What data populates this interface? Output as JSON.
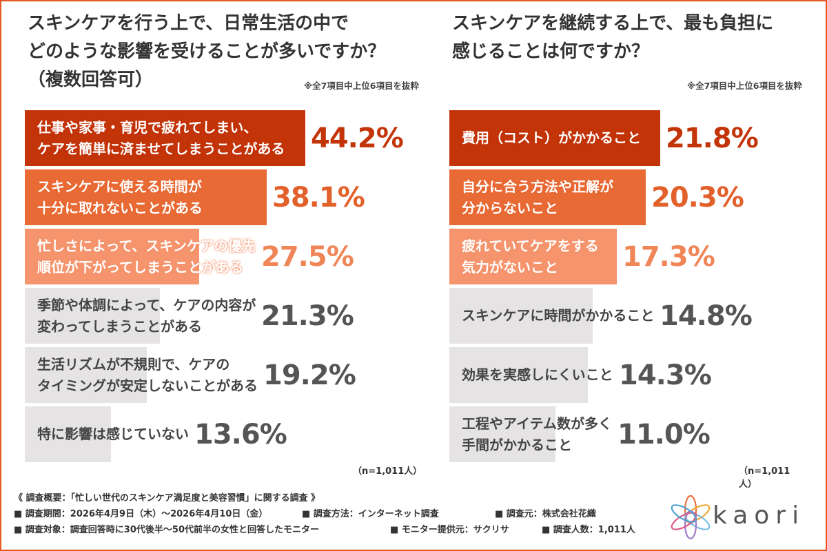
{
  "colors": {
    "border": "#e4571f",
    "bar1": "#c33409",
    "bar2": "#e86a35",
    "bar3": "#f5946d",
    "gray": "#e5e3e3",
    "pct1": "#c33409",
    "pct2": "#e2602a",
    "pct3": "#f08558",
    "pct_gray": "#555555"
  },
  "left": {
    "title": "スキンケアを行う上で、日常生活の中で\nどのような影響を受けることが多いですか？\n（複数回答可）",
    "note": "※全7項目中上位6項目を抜粋",
    "n_label": "（n=1,011人）"
  },
  "right": {
    "title": "スキンケアを継続する上で、最も負担に\n感じることは何ですか？",
    "note": "※全7項目中上位6項目を抜粋",
    "n_label": "（n=1,011人）"
  },
  "chart_data": [
    {
      "type": "bar",
      "orientation": "horizontal",
      "title": "スキンケアを行う上で、日常生活の中でどのような影響を受けることが多いですか？（複数回答可）",
      "categories": [
        "仕事や家事・育児で疲れてしまい、\nケアを簡単に済ませてしまうことがある",
        "スキンケアに使える時間が\n十分に取れないことがある",
        "忙しさによって、スキンケアの優先\n順位が下がってしまうことがある",
        "季節や体調によって、ケアの内容が\n変わってしまうことがある",
        "生活リズムが不規則で、ケアの\nタイミングが安定しないことがある",
        "特に影響は感じていない"
      ],
      "values": [
        44.2,
        38.1,
        27.5,
        21.3,
        19.2,
        13.6
      ],
      "value_labels": [
        "44.2%",
        "38.1%",
        "27.5%",
        "21.3%",
        "19.2%",
        "13.6%"
      ],
      "unit": "%",
      "xlim": [
        0,
        50
      ]
    },
    {
      "type": "bar",
      "orientation": "horizontal",
      "title": "スキンケアを継続する上で、最も負担に感じることは何ですか？",
      "categories": [
        "費用（コスト）がかかること",
        "自分に合う方法や正解が\n分からないこと",
        "疲れていてケアをする\n気力がないこと",
        "スキンケアに時間がかかること",
        "効果を実感しにくいこと",
        "工程やアイテム数が多く\n手間がかかること"
      ],
      "values": [
        21.8,
        20.3,
        17.3,
        14.8,
        14.3,
        11.0
      ],
      "value_labels": [
        "21.8%",
        "20.3%",
        "17.3%",
        "14.8%",
        "14.3%",
        "11.0%"
      ],
      "unit": "%",
      "xlim": [
        0,
        28.5
      ]
    }
  ],
  "footer": {
    "heading": "《 調査概要：「忙しい世代のスキンケア満足度と美容習慣」に関する調査 》",
    "period": "■ 調査期間：2026年4月9日（木）～2026年4月10日（金）",
    "method": "■ 調査方法：インターネット調査",
    "source": "■ 調査元：株式会社花織",
    "target": "■ 調査対象：調査回答時に30代後半～50代前半の女性と回答したモニター",
    "provider": "■ モニター提供元：サクリサ",
    "count": "■ 調査人数：1,011人"
  },
  "logo": {
    "text": "kaori"
  }
}
